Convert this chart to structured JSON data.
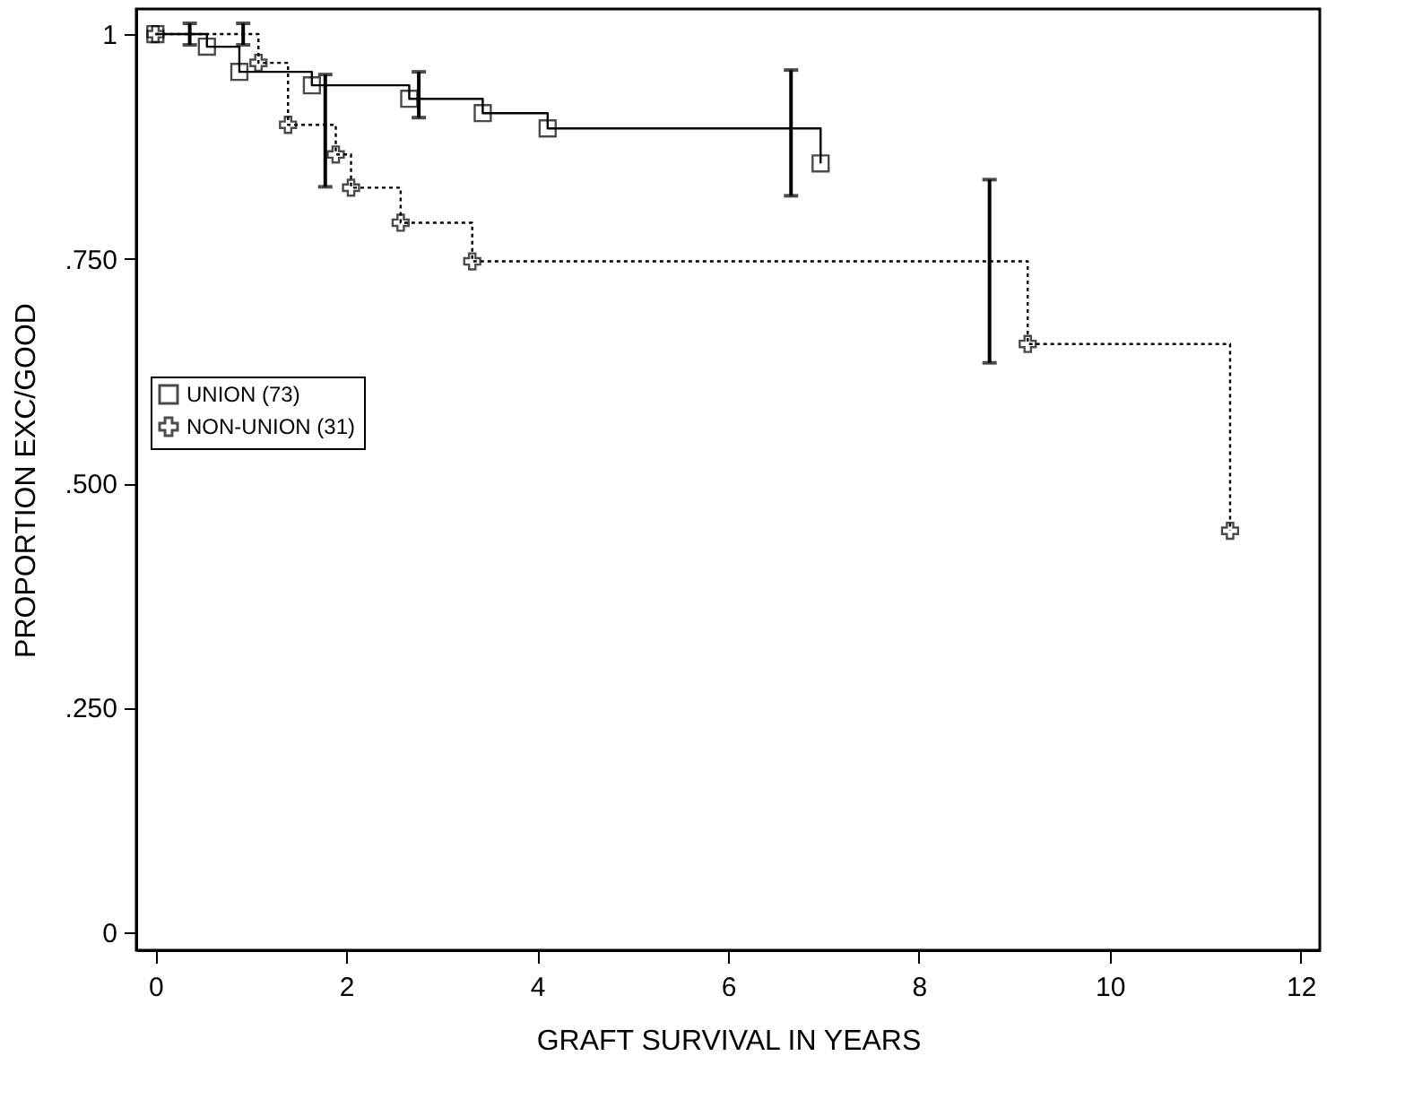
{
  "chart_data": {
    "type": "step",
    "xlabel": "GRAFT SURVIVAL IN YEARS",
    "ylabel": "PROPORTION EXC/GOOD",
    "xlim": [
      -0.2,
      12.2
    ],
    "xticks": [
      0,
      2,
      4,
      6,
      8,
      10,
      12
    ],
    "ylim": [
      -0.02,
      1.028
    ],
    "yticks": [
      {
        "value": 0,
        "label": "0"
      },
      {
        "value": 0.25,
        "label": ".250"
      },
      {
        "value": 0.5,
        "label": ".500"
      },
      {
        "value": 0.75,
        "label": ".750"
      },
      {
        "value": 1,
        "label": "1"
      }
    ],
    "grid": false,
    "legend": "left",
    "series": [
      {
        "name": "UNION (73)",
        "color": "#000000",
        "marker": "square",
        "line_style": "solid",
        "x": [
          0,
          0.36,
          0.54,
          0.88,
          1.64,
          2.66,
          2.76,
          3.43,
          4.11,
          6.66,
          6.97
        ],
        "values": [
          1,
          1,
          0.986,
          0.958,
          0.943,
          0.928,
          0.928,
          0.912,
          0.895,
          0.895,
          0.856
        ],
        "errors": [
          null,
          [
            0.988,
            1.012
          ],
          null,
          null,
          null,
          null,
          [
            0.907,
            0.958
          ],
          null,
          null,
          [
            0.82,
            0.96
          ],
          null
        ]
      },
      {
        "name": "NON-UNION (31)",
        "color": "#000000",
        "marker": "cross",
        "line_style": "dotted",
        "x": [
          0,
          0.92,
          1.08,
          1.39,
          1.78,
          1.89,
          2.05,
          2.57,
          3.32,
          8.74,
          9.14,
          11.26
        ],
        "values": [
          1,
          1,
          0.968,
          0.899,
          0.899,
          0.866,
          0.829,
          0.79,
          0.747,
          0.747,
          0.655,
          0.447
        ],
        "errors": [
          null,
          [
            0.988,
            1.012
          ],
          null,
          null,
          [
            0.83,
            0.955
          ],
          null,
          null,
          null,
          null,
          [
            0.634,
            0.838
          ],
          null,
          null
        ]
      }
    ]
  }
}
